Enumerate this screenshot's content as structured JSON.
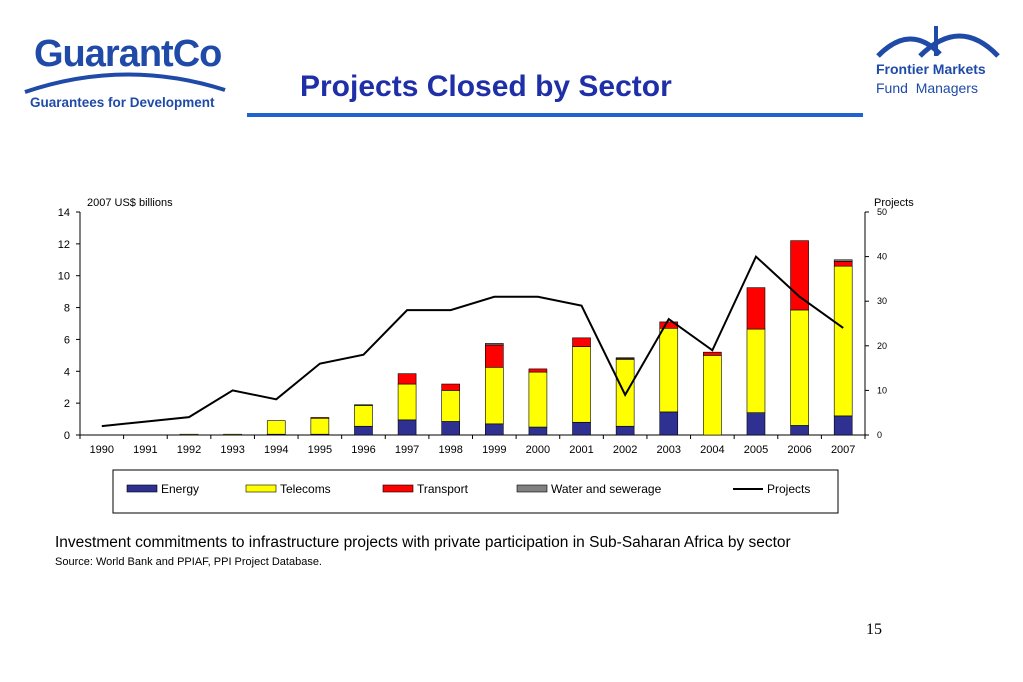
{
  "slide": {
    "title": "Projects Closed by Sector",
    "caption": "Investment commitments to infrastructure projects with private participation in Sub-Saharan Africa by sector",
    "source": "Source: World Bank and PPIAF, PPI Project Database.",
    "page_number": "15"
  },
  "logos": {
    "left": {
      "name": "GuarantCo",
      "tagline": "Guarantees for Development"
    },
    "right": {
      "line1": "Frontier Markets",
      "line2": "Fund  Managers"
    }
  },
  "colors": {
    "title": "#1f2fa8",
    "energy": "#2e3192",
    "telecoms": "#ffff00",
    "transport": "#ff0000",
    "water": "#808080",
    "projects_line": "#000000"
  },
  "chart_data": {
    "type": "bar",
    "stacked": true,
    "ylabel": "2007 US$ billions",
    "y2label": "Projects",
    "ylim": [
      0,
      14
    ],
    "y2lim": [
      0,
      50
    ],
    "yticks": [
      0,
      2,
      4,
      6,
      8,
      10,
      12,
      14
    ],
    "y2ticks": [
      0,
      10,
      20,
      30,
      40,
      50
    ],
    "categories": [
      "1990",
      "1991",
      "1992",
      "1993",
      "1994",
      "1995",
      "1996",
      "1997",
      "1998",
      "1999",
      "2000",
      "2001",
      "2002",
      "2003",
      "2004",
      "2005",
      "2006",
      "2007"
    ],
    "series": [
      {
        "name": "Energy",
        "color": "#2e3192",
        "values": [
          0,
          0,
          0,
          0,
          0.05,
          0.05,
          0.55,
          0.95,
          0.85,
          0.7,
          0.5,
          0.8,
          0.55,
          1.45,
          0,
          1.4,
          0.6,
          1.2
        ]
      },
      {
        "name": "Telecoms",
        "color": "#ffff00",
        "values": [
          0,
          0,
          0.05,
          0.05,
          0.85,
          1.0,
          1.3,
          2.25,
          1.95,
          3.55,
          3.45,
          4.75,
          4.2,
          5.25,
          5.0,
          5.25,
          7.25,
          9.4
        ]
      },
      {
        "name": "Transport",
        "color": "#ff0000",
        "values": [
          0,
          0,
          0,
          0,
          0,
          0.05,
          0,
          0.65,
          0.4,
          1.4,
          0.2,
          0.55,
          0.05,
          0.4,
          0.2,
          2.6,
          4.35,
          0.3
        ]
      },
      {
        "name": "Water and sewerage",
        "color": "#808080",
        "values": [
          0,
          0,
          0,
          0,
          0,
          0,
          0.05,
          0,
          0,
          0.1,
          0,
          0,
          0.05,
          0,
          0,
          0,
          0,
          0.1
        ]
      }
    ],
    "line": {
      "name": "Projects",
      "color": "#000000",
      "axis": "right",
      "values": [
        2,
        3,
        4,
        10,
        8,
        16,
        18,
        28,
        28,
        31,
        31,
        29,
        9,
        26,
        19,
        40,
        31,
        24
      ]
    },
    "legend": [
      "Energy",
      "Telecoms",
      "Transport",
      "Water and sewerage",
      "Projects"
    ],
    "legend_position": "bottom",
    "grid": false
  }
}
